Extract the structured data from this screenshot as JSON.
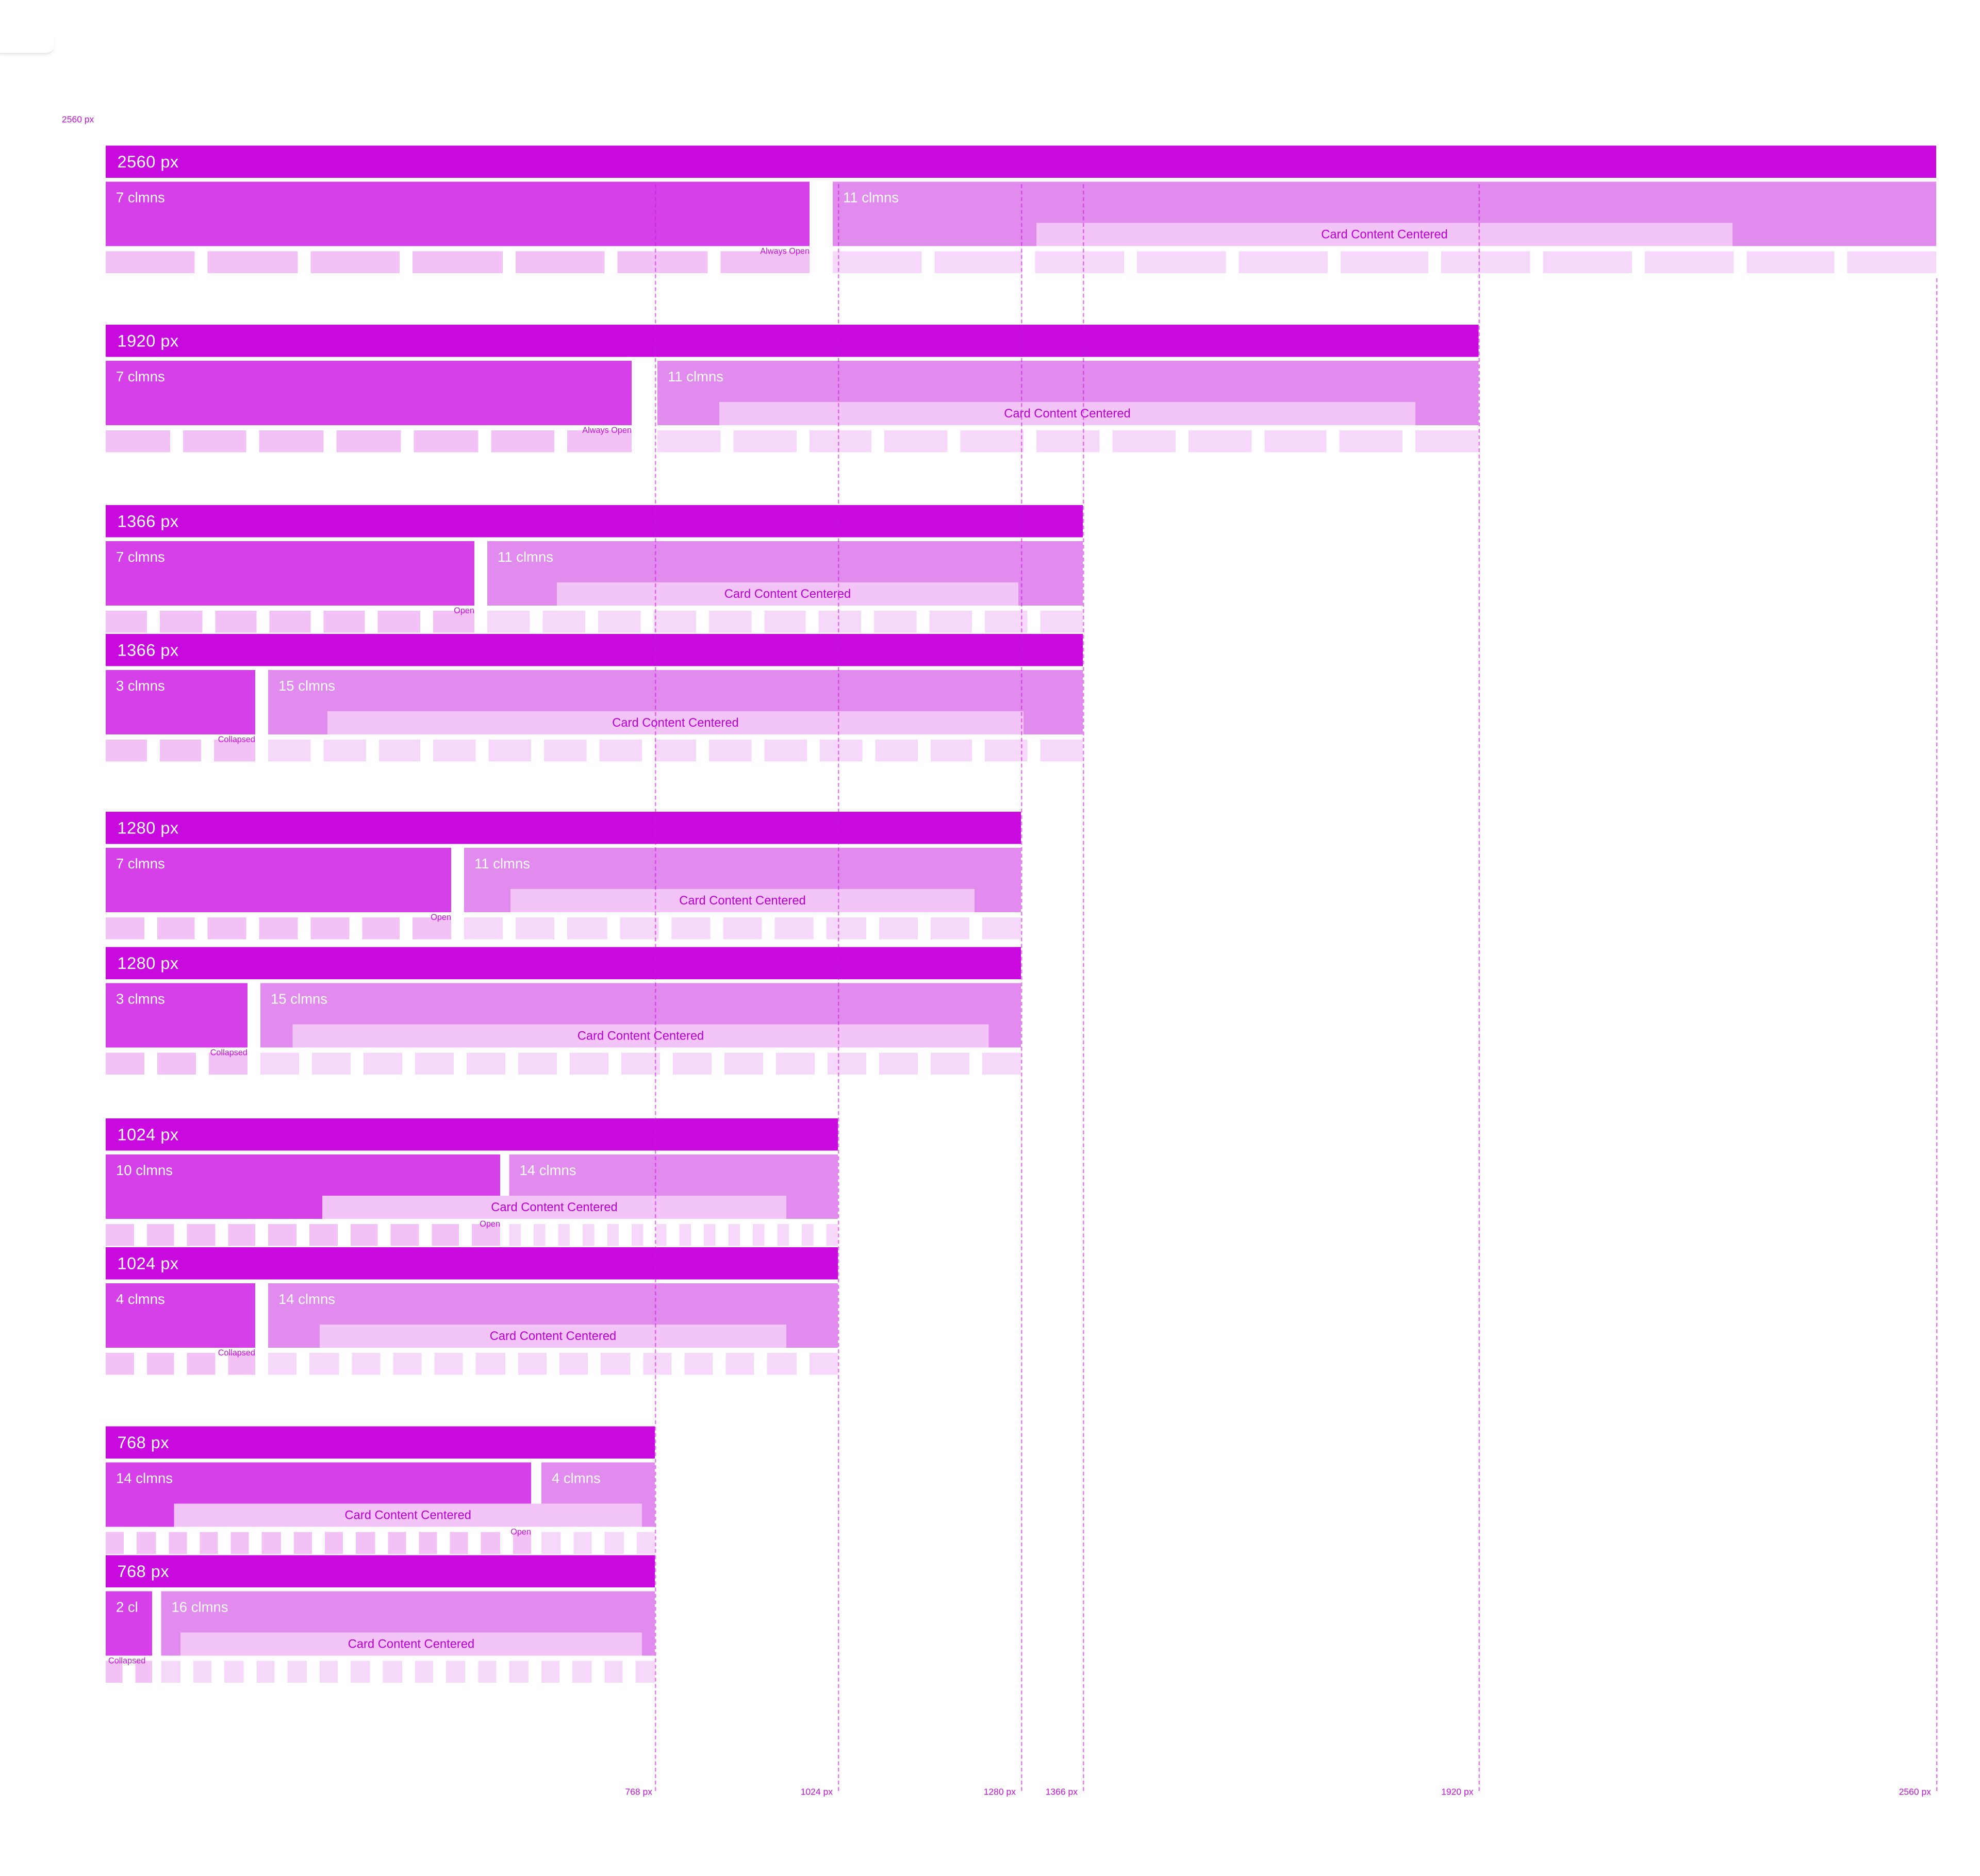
{
  "frame_label": "2560 px",
  "colors": {
    "header": "#C80ADF",
    "leftblock": "#D640E8",
    "rightblock": "#E18BEF",
    "cardbar": "#F3C4F7",
    "cardtext": "#B800D2",
    "swatchL": "#F2C2F6",
    "swatchR": "#F6D9FA",
    "labeltext": "#C113D8",
    "guide": "#C71ADB"
  },
  "groups": [
    {
      "title": "2560 px",
      "left_label": "7 clmns",
      "right_label": "11 clmns",
      "card_label": "Card Content Centered",
      "state_label": "Always Open",
      "left_cols": 7,
      "right_cols": 11
    },
    {
      "title": "1920 px",
      "left_label": "7 clmns",
      "right_label": "11 clmns",
      "card_label": "Card Content Centered",
      "state_label": "Always Open",
      "left_cols": 7,
      "right_cols": 11
    },
    {
      "title": "1366 px",
      "left_label": "7 clmns",
      "right_label": "11 clmns",
      "card_label": "Card Content Centered",
      "state_label": "Open",
      "left_cols": 7,
      "right_cols": 11
    },
    {
      "title": "1366 px",
      "left_label": "3 clmns",
      "right_label": "15 clmns",
      "card_label": "Card Content Centered",
      "state_label": "Collapsed",
      "left_cols": 3,
      "right_cols": 15
    },
    {
      "title": "1280 px",
      "left_label": "7 clmns",
      "right_label": "11 clmns",
      "card_label": "Card Content Centered",
      "state_label": "Open",
      "left_cols": 7,
      "right_cols": 11
    },
    {
      "title": "1280 px",
      "left_label": "3 clmns",
      "right_label": "15 clmns",
      "card_label": "Card Content Centered",
      "state_label": "Collapsed",
      "left_cols": 3,
      "right_cols": 15
    },
    {
      "title": "1024 px",
      "left_label": "10 clmns",
      "right_label": "14 clmns",
      "card_label": "Card Content Centered",
      "state_label": "Open",
      "left_cols": 10,
      "right_cols": 14
    },
    {
      "title": "1024 px",
      "left_label": "4 clmns",
      "right_label": "14 clmns",
      "card_label": "Card Content Centered",
      "state_label": "Collapsed",
      "left_cols": 4,
      "right_cols": 14
    },
    {
      "title": "768 px",
      "left_label": "14 clmns",
      "right_label": "4 clmns",
      "card_label": "Card Content Centered",
      "state_label": "Open",
      "left_cols": 14,
      "right_cols": 4
    },
    {
      "title": "768 px",
      "left_label": "2 cl",
      "right_label": "16 clmns",
      "card_label": "Card Content Centered",
      "state_label": "Collapsed",
      "left_cols": 2,
      "right_cols": 16
    }
  ],
  "axis_labels": [
    "768 px",
    "1024 px",
    "1280 px",
    "1366 px",
    "1920 px",
    "2560 px"
  ]
}
